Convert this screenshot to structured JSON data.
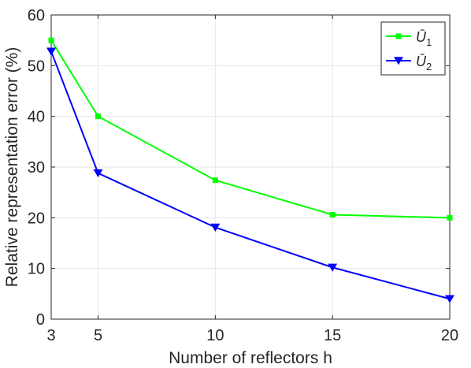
{
  "chart_data": {
    "type": "line",
    "xlabel": "Number of reflectors h",
    "ylabel": "Relative representation error (%)",
    "x": [
      3,
      5,
      10,
      15,
      20
    ],
    "xticks": [
      3,
      5,
      10,
      15,
      20
    ],
    "yticks": [
      0,
      10,
      20,
      30,
      40,
      50,
      60
    ],
    "xlim": [
      3,
      20
    ],
    "ylim": [
      0,
      60
    ],
    "grid": true,
    "legend_position": "top-right",
    "series": [
      {
        "name": "Ū1",
        "name_base": "Ū",
        "name_sub": "1",
        "color": "#00ff00",
        "marker": "square",
        "values": [
          55,
          40,
          27.4,
          20.6,
          20
        ]
      },
      {
        "name": "Ū2",
        "name_base": "Ū",
        "name_sub": "2",
        "color": "#0000ff",
        "marker": "triangle-down",
        "values": [
          52.8,
          28.8,
          18.1,
          10.2,
          4
        ]
      }
    ]
  }
}
